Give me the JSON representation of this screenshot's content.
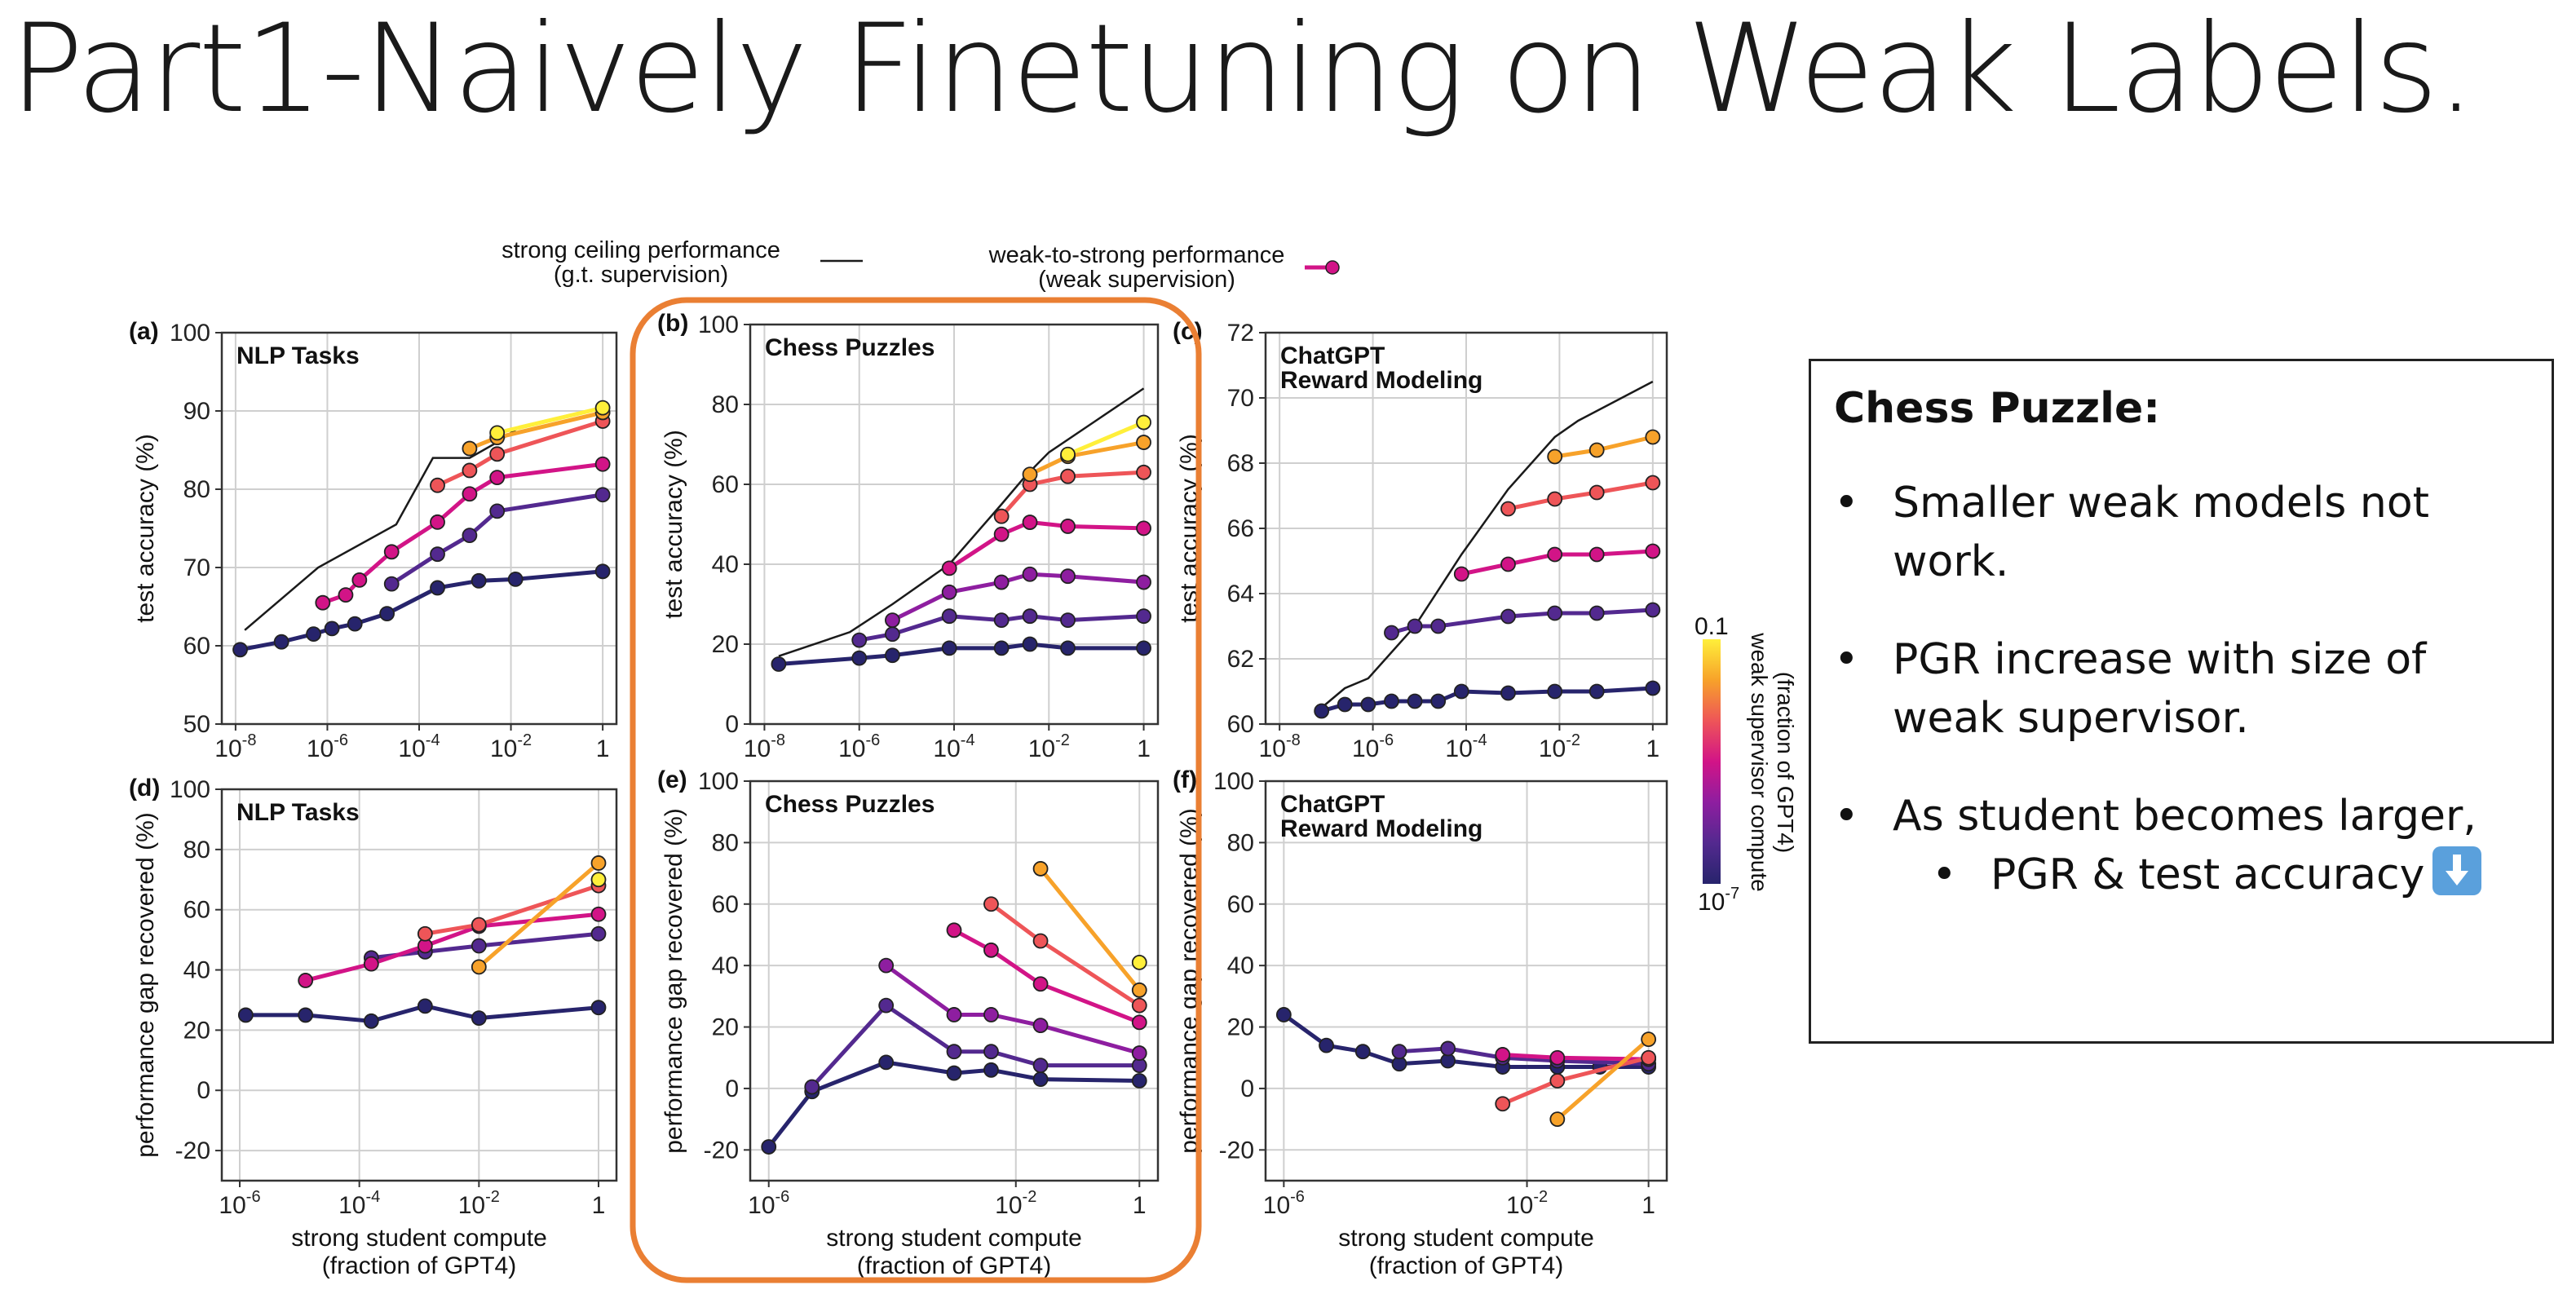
{
  "slide_title": "Part1-Naively Finetuning on Weak Labels.",
  "legend": {
    "ceiling": [
      "strong ceiling performance",
      "(g.t. supervision)"
    ],
    "w2s": [
      "weak-to-strong performance",
      "(weak supervision)"
    ]
  },
  "colorbar": {
    "title": [
      "weak supervisor compute",
      "(fraction of GPT4)"
    ],
    "top_label": "0.1",
    "bottom_label": "10",
    "bottom_label_exp": "-7",
    "colors": [
      "#ffef3a",
      "#f7a22a",
      "#ee5558",
      "#d21487",
      "#8e1ea0",
      "#53298f",
      "#27246c"
    ]
  },
  "colors": {
    "highlight": "#ea7f33",
    "ceiling": "#1a1a1a"
  },
  "chart_data": [
    {
      "type": "line",
      "panel": "(a)",
      "title": "NLP Tasks",
      "ylabel": "test accuracy (%)",
      "xlabel": "",
      "xscale": "log",
      "xlim": [
        -8.3,
        0.3
      ],
      "ylim": [
        50,
        100
      ],
      "xticks": [
        -8,
        -6,
        -4,
        -2,
        0
      ],
      "yticks": [
        50,
        60,
        70,
        80,
        90,
        100
      ],
      "ceiling": {
        "x": [
          -7.8,
          -6.2,
          -4.5,
          -3.7,
          -3.3,
          -2.9,
          -2.3,
          -1.8,
          0.0
        ],
        "y": [
          62,
          70,
          75.5,
          84,
          84,
          84,
          86,
          88,
          90.5
        ]
      },
      "series": [
        {
          "color": "#27246c",
          "x": [
            -7.9,
            -7.0,
            -6.3,
            -5.9,
            -5.4,
            -4.7,
            -3.6,
            -2.7,
            -1.9,
            0.0
          ],
          "y": [
            59.5,
            60.5,
            61.5,
            62.2,
            62.8,
            64.1,
            67.4,
            68.3,
            68.5,
            69.5
          ]
        },
        {
          "color": "#53298f",
          "x": [
            -4.6,
            -3.6,
            -2.9,
            -2.3,
            0.0
          ],
          "y": [
            67.9,
            71.7,
            74.1,
            77.2,
            79.3
          ]
        },
        {
          "color": "#d21487",
          "x": [
            -6.1,
            -5.6,
            -5.3,
            -4.6,
            -3.6,
            -2.9,
            -2.3,
            0.0
          ],
          "y": [
            65.5,
            66.5,
            68.4,
            72,
            75.8,
            79.4,
            81.5,
            83.2
          ]
        },
        {
          "color": "#ee5558",
          "x": [
            -3.6,
            -2.9,
            -2.3,
            0.0
          ],
          "y": [
            80.5,
            82.4,
            84.5,
            88.7
          ]
        },
        {
          "color": "#f7a22a",
          "x": [
            -2.9,
            -2.3,
            0.0
          ],
          "y": [
            85.2,
            86.6,
            89.8
          ]
        },
        {
          "color": "#ffef3a",
          "x": [
            -2.3,
            0.0
          ],
          "y": [
            87.2,
            90.4
          ]
        }
      ]
    },
    {
      "type": "line",
      "panel": "(b)",
      "title": "Chess Puzzles",
      "ylabel": "test accuracy (%)",
      "xlabel": "",
      "xscale": "log",
      "xlim": [
        -8.3,
        0.3
      ],
      "ylim": [
        0,
        100
      ],
      "xticks": [
        -8,
        -6,
        -4,
        -2,
        0
      ],
      "yticks": [
        0,
        20,
        40,
        60,
        80,
        100
      ],
      "ceiling": {
        "x": [
          -7.7,
          -6.2,
          -5.3,
          -4.1,
          -3.0,
          -2.5,
          -2.0,
          -1.0,
          0.0
        ],
        "y": [
          17,
          23,
          30,
          40,
          55,
          62,
          68,
          76,
          84
        ]
      },
      "series": [
        {
          "color": "#27246c",
          "x": [
            -7.7,
            -6.0,
            -5.3,
            -4.1,
            -3.0,
            -2.4,
            -1.6,
            0.0
          ],
          "y": [
            15,
            16.5,
            17.2,
            19,
            19,
            20,
            19,
            19
          ]
        },
        {
          "color": "#53298f",
          "x": [
            -6.0,
            -5.3,
            -4.1,
            -3.0,
            -2.4,
            -1.6,
            0.0
          ],
          "y": [
            21,
            22.5,
            27,
            26,
            27,
            26,
            27
          ]
        },
        {
          "color": "#8e1ea0",
          "x": [
            -5.3,
            -4.1,
            -3.0,
            -2.4,
            -1.6,
            0.0
          ],
          "y": [
            26,
            33,
            35.5,
            37.5,
            37,
            35.5
          ]
        },
        {
          "color": "#d21487",
          "x": [
            -4.1,
            -3.0,
            -2.4,
            -1.6,
            0.0
          ],
          "y": [
            39,
            47.5,
            50.5,
            49.5,
            49
          ]
        },
        {
          "color": "#ee5558",
          "x": [
            -3.0,
            -2.4,
            -1.6,
            0.0
          ],
          "y": [
            52,
            60,
            62,
            63
          ]
        },
        {
          "color": "#f7a22a",
          "x": [
            -2.4,
            -1.6,
            0.0
          ],
          "y": [
            62.5,
            67,
            70.5
          ]
        },
        {
          "color": "#ffef3a",
          "x": [
            -1.6,
            0.0
          ],
          "y": [
            67.5,
            75.5
          ]
        }
      ]
    },
    {
      "type": "line",
      "panel": "(c)",
      "title": "ChatGPT",
      "title2": "Reward Modeling",
      "ylabel": "test accuracy (%)",
      "xlabel": "",
      "xscale": "log",
      "xlim": [
        -8.3,
        0.3
      ],
      "ylim": [
        60,
        72
      ],
      "xticks": [
        -8,
        -6,
        -4,
        -2,
        0
      ],
      "yticks": [
        60,
        62,
        64,
        66,
        68,
        70,
        72
      ],
      "ceiling": {
        "x": [
          -7.1,
          -6.6,
          -6.1,
          -5.1,
          -4.1,
          -3.1,
          -2.1,
          -1.6,
          0.0
        ],
        "y": [
          60.5,
          61.1,
          61.4,
          63,
          65.2,
          67.2,
          68.8,
          69.3,
          70.5
        ]
      },
      "series": [
        {
          "color": "#27246c",
          "x": [
            -7.1,
            -6.6,
            -6.1,
            -5.6,
            -5.1,
            -4.6,
            -4.1,
            -3.1,
            -2.1,
            -1.2,
            0.0
          ],
          "y": [
            60.4,
            60.6,
            60.6,
            60.7,
            60.7,
            60.7,
            61,
            60.95,
            61,
            61,
            61.1
          ]
        },
        {
          "color": "#53298f",
          "x": [
            -5.6,
            -5.1,
            -4.6,
            -3.1,
            -2.1,
            -1.2,
            0.0
          ],
          "y": [
            62.8,
            63,
            63,
            63.3,
            63.4,
            63.4,
            63.5
          ]
        },
        {
          "color": "#d21487",
          "x": [
            -4.1,
            -3.1,
            -2.1,
            -1.2,
            0.0
          ],
          "y": [
            64.6,
            64.9,
            65.2,
            65.2,
            65.3
          ]
        },
        {
          "color": "#ee5558",
          "x": [
            -3.1,
            -2.1,
            -1.2,
            0.0
          ],
          "y": [
            66.6,
            66.9,
            67.1,
            67.4
          ]
        },
        {
          "color": "#f7a22a",
          "x": [
            -2.1,
            -1.2,
            0.0
          ],
          "y": [
            68.2,
            68.4,
            68.8
          ]
        }
      ]
    },
    {
      "type": "line",
      "panel": "(d)",
      "title": "NLP Tasks",
      "ylabel": "performance gap recovered (%)",
      "xlabel": [
        "strong student compute",
        "(fraction of GPT4)"
      ],
      "xscale": "log",
      "xlim": [
        -6.3,
        0.3
      ],
      "ylim": [
        -30,
        100
      ],
      "xticks": [
        -6,
        -4,
        -2,
        0
      ],
      "yticks": [
        -20,
        0,
        20,
        40,
        60,
        80,
        100
      ],
      "series": [
        {
          "color": "#27246c",
          "x": [
            -5.9,
            -4.9,
            -3.8,
            -2.9,
            -2.0,
            0.0
          ],
          "y": [
            25,
            25,
            23,
            28,
            24,
            27.5
          ]
        },
        {
          "color": "#53298f",
          "x": [
            -3.8,
            -2.9,
            -2.0,
            0.0
          ],
          "y": [
            44,
            46,
            48,
            52
          ]
        },
        {
          "color": "#d21487",
          "x": [
            -4.9,
            -3.8,
            -2.9,
            -2.0,
            0.0
          ],
          "y": [
            36.5,
            42,
            48,
            54.5,
            58.5
          ]
        },
        {
          "color": "#ee5558",
          "x": [
            -2.9,
            -2.0,
            0.0
          ],
          "y": [
            52,
            55,
            68
          ]
        },
        {
          "color": "#f7a22a",
          "x": [
            -2.0,
            0.0
          ],
          "y": [
            41,
            75.5
          ]
        },
        {
          "color": "#ffef3a",
          "x": [
            0.0
          ],
          "y": [
            70
          ]
        }
      ]
    },
    {
      "type": "line",
      "panel": "(e)",
      "title": "Chess Puzzles",
      "ylabel": "performance gap recovered (%)",
      "xlabel": [
        "strong student compute",
        "(fraction of GPT4)"
      ],
      "xscale": "log",
      "xlim": [
        -6.3,
        0.3
      ],
      "ylim": [
        -30,
        100
      ],
      "xticks": [
        -6,
        -2,
        0
      ],
      "yticks": [
        -20,
        0,
        20,
        40,
        60,
        80,
        100
      ],
      "series": [
        {
          "color": "#27246c",
          "x": [
            -6.0,
            -5.3,
            -4.1,
            -3.0,
            -2.4,
            -1.6,
            0.0
          ],
          "y": [
            -19,
            -1,
            8.5,
            5,
            6,
            3,
            2.5
          ]
        },
        {
          "color": "#53298f",
          "x": [
            -5.3,
            -4.1,
            -3.0,
            -2.4,
            -1.6,
            0.0
          ],
          "y": [
            0.5,
            27,
            12,
            12,
            7.5,
            7.5
          ]
        },
        {
          "color": "#8e1ea0",
          "x": [
            -4.1,
            -3.0,
            -2.4,
            -1.6,
            0.0
          ],
          "y": [
            40,
            24,
            24,
            20.5,
            11.5
          ]
        },
        {
          "color": "#d21487",
          "x": [
            -3.0,
            -2.4,
            -1.6,
            0.0
          ],
          "y": [
            51.5,
            45,
            34,
            21.5
          ]
        },
        {
          "color": "#ee5558",
          "x": [
            -2.4,
            -1.6,
            0.0
          ],
          "y": [
            60,
            48,
            27
          ]
        },
        {
          "color": "#f7a22a",
          "x": [
            -1.6,
            0.0
          ],
          "y": [
            71.5,
            32
          ]
        },
        {
          "color": "#ffef3a",
          "x": [
            0.0
          ],
          "y": [
            41
          ]
        }
      ]
    },
    {
      "type": "line",
      "panel": "(f)",
      "title": "ChatGPT",
      "title2": "Reward Modeling",
      "ylabel": "performance gap recovered (%)",
      "xlabel": [
        "strong student compute",
        "(fraction of GPT4)"
      ],
      "xscale": "log",
      "xlim": [
        -6.3,
        0.3
      ],
      "ylim": [
        -30,
        100
      ],
      "xticks": [
        -6,
        -2,
        0
      ],
      "yticks": [
        -20,
        0,
        20,
        40,
        60,
        80,
        100
      ],
      "series": [
        {
          "color": "#27246c",
          "x": [
            -6.0,
            -5.3,
            -4.7,
            -4.1,
            -3.3,
            -2.4,
            -1.5,
            -0.8,
            0.0
          ],
          "y": [
            24,
            14,
            12,
            8,
            9,
            7,
            7,
            7,
            7
          ]
        },
        {
          "color": "#53298f",
          "x": [
            -4.1,
            -3.3,
            -2.4,
            -1.5,
            0.0
          ],
          "y": [
            12,
            13,
            10,
            9,
            8
          ]
        },
        {
          "color": "#d21487",
          "x": [
            -2.4,
            -1.5,
            0.0
          ],
          "y": [
            11,
            10,
            9.5
          ]
        },
        {
          "color": "#ee5558",
          "x": [
            -2.4,
            -1.5,
            0.0
          ],
          "y": [
            -5,
            2.5,
            10
          ]
        },
        {
          "color": "#f7a22a",
          "x": [
            -1.5,
            0.0
          ],
          "y": [
            -10,
            16
          ]
        }
      ]
    }
  ],
  "notes": {
    "title": "Chess Puzzle:",
    "bullets": [
      "Smaller weak models not work.",
      "PGR increase with size of weak supervisor.",
      "As student becomes larger,"
    ],
    "sub_bullet": "PGR & test accuracy",
    "sub_icon": "down-arrow-icon"
  }
}
